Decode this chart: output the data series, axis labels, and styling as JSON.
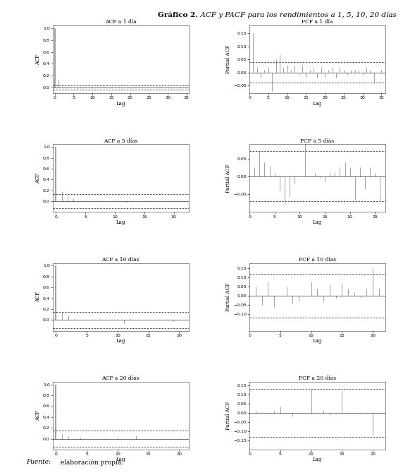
{
  "title_bold": "Gráfico 2.",
  "title_italic": " ACF y PACF para los rendimientos a 1, 5, 10, 20 días",
  "source_italic": "Fuente:",
  "source_normal": " elaboración propia.",
  "background_color": "#ffffff",
  "subplot_titles": [
    "ACF a 1 día",
    "PCF a 1 día",
    "ACF a 5 días",
    "PCF a 5 días",
    "ACF a 10 días",
    "PCF a 10 días",
    "ACF a 20 días",
    "PCF a 20 días"
  ],
  "bar_color": "#a0a0a0",
  "ci_color": "#555555",
  "acf_data": [
    {
      "lags": [
        0,
        1,
        2,
        3,
        4,
        5,
        6,
        7,
        8,
        9,
        10,
        11,
        12,
        13,
        14,
        15,
        16,
        17,
        18,
        19,
        20,
        21,
        22,
        23,
        24,
        25,
        26,
        27,
        28,
        29,
        30,
        31,
        32,
        33,
        34,
        35
      ],
      "values": [
        1.0,
        0.13,
        0.01,
        -0.01,
        0.01,
        0.0,
        -0.03,
        0.01,
        0.01,
        0.01,
        0.01,
        0.0,
        0.01,
        0.02,
        0.01,
        0.01,
        0.0,
        0.01,
        -0.01,
        0.0,
        0.01,
        0.01,
        0.0,
        -0.01,
        0.0,
        0.01,
        0.0,
        0.0,
        0.01,
        0.0,
        0.01,
        -0.01,
        0.0,
        -0.01,
        0.0,
        0.0
      ],
      "ci_upper": 0.04,
      "ci_lower": -0.04,
      "ylim": [
        -0.1,
        1.05
      ],
      "yticks": [
        0.0,
        0.2,
        0.4,
        0.6,
        0.8,
        1.0
      ],
      "xlim": [
        -0.5,
        35.5
      ],
      "xticks": [
        0,
        5,
        10,
        15,
        20,
        25,
        30,
        35
      ],
      "ylabel": "ACF"
    },
    {
      "lags": [
        0,
        1,
        2,
        3,
        4,
        5,
        6,
        7,
        8,
        9,
        10,
        11,
        12,
        13,
        14,
        15,
        16,
        17,
        18,
        19,
        20,
        21,
        22
      ],
      "values": [
        1.0,
        0.18,
        0.12,
        0.05,
        0.0,
        0.02,
        0.0,
        -0.01,
        0.0,
        0.0,
        0.02,
        0.0,
        -0.02,
        0.01,
        0.0,
        0.01,
        -0.01,
        0.0,
        0.0,
        0.0,
        0.01,
        0.01,
        0.0
      ],
      "ci_upper": 0.13,
      "ci_lower": -0.13,
      "ylim": [
        -0.2,
        1.05
      ],
      "yticks": [
        0.0,
        0.2,
        0.4,
        0.6,
        0.8,
        1.0
      ],
      "xlim": [
        -0.5,
        22.5
      ],
      "xticks": [
        0,
        5,
        10,
        15,
        20
      ],
      "ylabel": "ACF"
    },
    {
      "lags": [
        0,
        1,
        2,
        3,
        4,
        5,
        6,
        7,
        8,
        9,
        10,
        11,
        12,
        13,
        14,
        15,
        16,
        17,
        18,
        19,
        20,
        21
      ],
      "values": [
        1.0,
        0.14,
        0.08,
        0.02,
        0.01,
        0.0,
        -0.01,
        0.02,
        0.0,
        -0.01,
        0.02,
        -0.06,
        0.03,
        0.0,
        0.01,
        -0.01,
        0.01,
        0.0,
        -0.01,
        -0.02,
        0.01,
        0.0
      ],
      "ci_upper": 0.15,
      "ci_lower": -0.15,
      "ylim": [
        -0.2,
        1.05
      ],
      "yticks": [
        0.0,
        0.2,
        0.4,
        0.6,
        0.8,
        1.0
      ],
      "xlim": [
        -0.5,
        21.5
      ],
      "xticks": [
        0,
        5,
        10,
        15,
        20
      ],
      "ylabel": "ACF"
    },
    {
      "lags": [
        0,
        1,
        2,
        3,
        4,
        5,
        6,
        7,
        8,
        9,
        10,
        11,
        12,
        13,
        14,
        15,
        16,
        17,
        18,
        19,
        20,
        21
      ],
      "values": [
        1.0,
        0.08,
        0.05,
        0.01,
        0.02,
        0.0,
        -0.01,
        0.0,
        0.01,
        0.0,
        0.04,
        0.01,
        -0.02,
        0.06,
        0.0,
        0.0,
        -0.01,
        0.01,
        0.0,
        0.0,
        0.01,
        0.0
      ],
      "ci_upper": 0.15,
      "ci_lower": -0.15,
      "ylim": [
        -0.2,
        1.05
      ],
      "yticks": [
        0.0,
        0.2,
        0.4,
        0.6,
        0.8,
        1.0
      ],
      "xlim": [
        -0.5,
        21.5
      ],
      "xticks": [
        0,
        5,
        10,
        15,
        20
      ],
      "ylabel": "ACF"
    }
  ],
  "pacf_data": [
    {
      "lags": [
        1,
        2,
        3,
        4,
        5,
        6,
        7,
        8,
        9,
        10,
        11,
        12,
        13,
        14,
        15,
        16,
        17,
        18,
        19,
        20,
        21,
        22,
        23,
        24,
        25,
        26,
        27,
        28,
        29,
        30,
        31,
        32,
        33,
        34,
        35
      ],
      "values": [
        0.15,
        0.02,
        -0.02,
        0.01,
        0.02,
        -0.07,
        0.05,
        0.07,
        0.02,
        0.03,
        0.01,
        0.03,
        -0.01,
        0.03,
        -0.02,
        0.01,
        0.02,
        -0.02,
        0.02,
        -0.02,
        0.01,
        0.02,
        -0.02,
        0.02,
        0.01,
        -0.01,
        0.01,
        0.01,
        0.01,
        -0.01,
        0.02,
        0.01,
        -0.04,
        0.0,
        0.01
      ],
      "ci_upper": 0.04,
      "ci_lower": -0.04,
      "ylim": [
        -0.08,
        0.18
      ],
      "yticks": [
        -0.05,
        0.0,
        0.05,
        0.1,
        0.15
      ],
      "xlim": [
        0,
        36
      ],
      "xticks": [
        0,
        5,
        10,
        15,
        20,
        25,
        30,
        35
      ],
      "ylabel": "Partial ACF"
    },
    {
      "lags": [
        1,
        2,
        3,
        4,
        5,
        6,
        7,
        8,
        9,
        10,
        11,
        12,
        13,
        14,
        15,
        16,
        17,
        18,
        19,
        20,
        21,
        22,
        23,
        24,
        25,
        26,
        27
      ],
      "values": [
        0.025,
        0.07,
        0.04,
        0.03,
        0.01,
        -0.04,
        -0.08,
        -0.055,
        -0.02,
        0.0,
        0.12,
        0.0,
        0.01,
        -0.005,
        -0.015,
        0.01,
        0.01,
        0.025,
        0.04,
        0.025,
        -0.065,
        0.025,
        -0.035,
        0.025,
        0.01,
        -0.07,
        -0.045
      ],
      "ci_upper": 0.07,
      "ci_lower": -0.07,
      "ylim": [
        -0.1,
        0.09
      ],
      "yticks": [
        -0.05,
        0.0,
        0.05
      ],
      "xlim": [
        0,
        27
      ],
      "xticks": [
        0,
        5,
        10,
        15,
        20,
        25
      ],
      "ylabel": "Partial ACF"
    },
    {
      "lags": [
        1,
        2,
        3,
        4,
        5,
        6,
        7,
        8,
        9,
        10,
        11,
        12,
        13,
        14,
        15,
        16,
        17,
        18,
        19,
        20,
        21
      ],
      "values": [
        0.05,
        -0.05,
        0.08,
        -0.06,
        0.0,
        0.05,
        -0.04,
        -0.03,
        0.0,
        0.08,
        0.04,
        -0.03,
        0.06,
        -0.01,
        0.07,
        0.04,
        0.02,
        -0.01,
        0.04,
        0.15,
        0.04
      ],
      "ci_upper": 0.12,
      "ci_lower": -0.12,
      "ylim": [
        -0.19,
        0.18
      ],
      "yticks": [
        -0.1,
        -0.05,
        0.0,
        0.05,
        0.1,
        0.15
      ],
      "xlim": [
        0,
        22
      ],
      "xticks": [
        0,
        5,
        10,
        15,
        20
      ],
      "ylabel": "Partial ACF"
    },
    {
      "lags": [
        1,
        2,
        3,
        4,
        5,
        6,
        7,
        8,
        9,
        10,
        11,
        12,
        13,
        14,
        15,
        16,
        17,
        18,
        19,
        20,
        21
      ],
      "values": [
        0.01,
        0.005,
        0.005,
        0.01,
        0.035,
        0.005,
        -0.02,
        0.005,
        0.005,
        0.13,
        0.005,
        0.015,
        -0.01,
        0.005,
        0.12,
        0.005,
        0.0,
        0.005,
        0.005,
        -0.12,
        0.005
      ],
      "ci_upper": 0.13,
      "ci_lower": -0.13,
      "ylim": [
        -0.2,
        0.17
      ],
      "yticks": [
        -0.15,
        -0.1,
        -0.05,
        0.0,
        0.05,
        0.1,
        0.15
      ],
      "xlim": [
        0,
        22
      ],
      "xticks": [
        0,
        5,
        10,
        15,
        20
      ],
      "ylabel": "Partial ACF"
    }
  ]
}
